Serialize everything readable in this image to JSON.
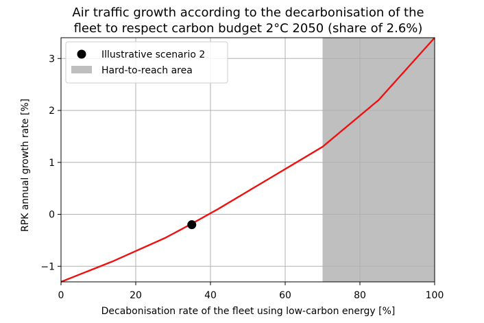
{
  "chart_data": {
    "type": "line",
    "title_lines": [
      "Air traffic growth according to the decarbonisation of the",
      "fleet to respect carbon budget 2°C 2050 (share of 2.6%)"
    ],
    "xlabel": "Decabonisation rate of the fleet using low-carbon energy [%]",
    "ylabel": "RPK annual growth rate [%]",
    "xlim": [
      0,
      100
    ],
    "ylim": [
      -1.3,
      3.4
    ],
    "x_ticks": [
      0,
      20,
      40,
      60,
      80,
      100
    ],
    "x_tick_labels": [
      "0",
      "20",
      "40",
      "60",
      "80",
      "100"
    ],
    "y_ticks": [
      -1,
      0,
      1,
      2,
      3
    ],
    "y_tick_labels": [
      "−1",
      "0",
      "1",
      "2",
      "3"
    ],
    "grid": true,
    "legend_position": "top-left",
    "series": [
      {
        "color": "#ee1111",
        "x": [
          0,
          14,
          28,
          35,
          42,
          56,
          70,
          85,
          100
        ],
        "y": [
          -1.3,
          -0.9,
          -0.45,
          -0.18,
          0.1,
          0.7,
          1.3,
          2.2,
          3.4
        ]
      }
    ],
    "highlight_point": {
      "name": "Illustrative scenario 2",
      "x": 35,
      "y": -0.2,
      "color": "#000000"
    },
    "shaded_region": {
      "name": "Hard-to-reach area",
      "x_start": 70,
      "x_end": 100,
      "color": "#bfbfbf"
    }
  }
}
